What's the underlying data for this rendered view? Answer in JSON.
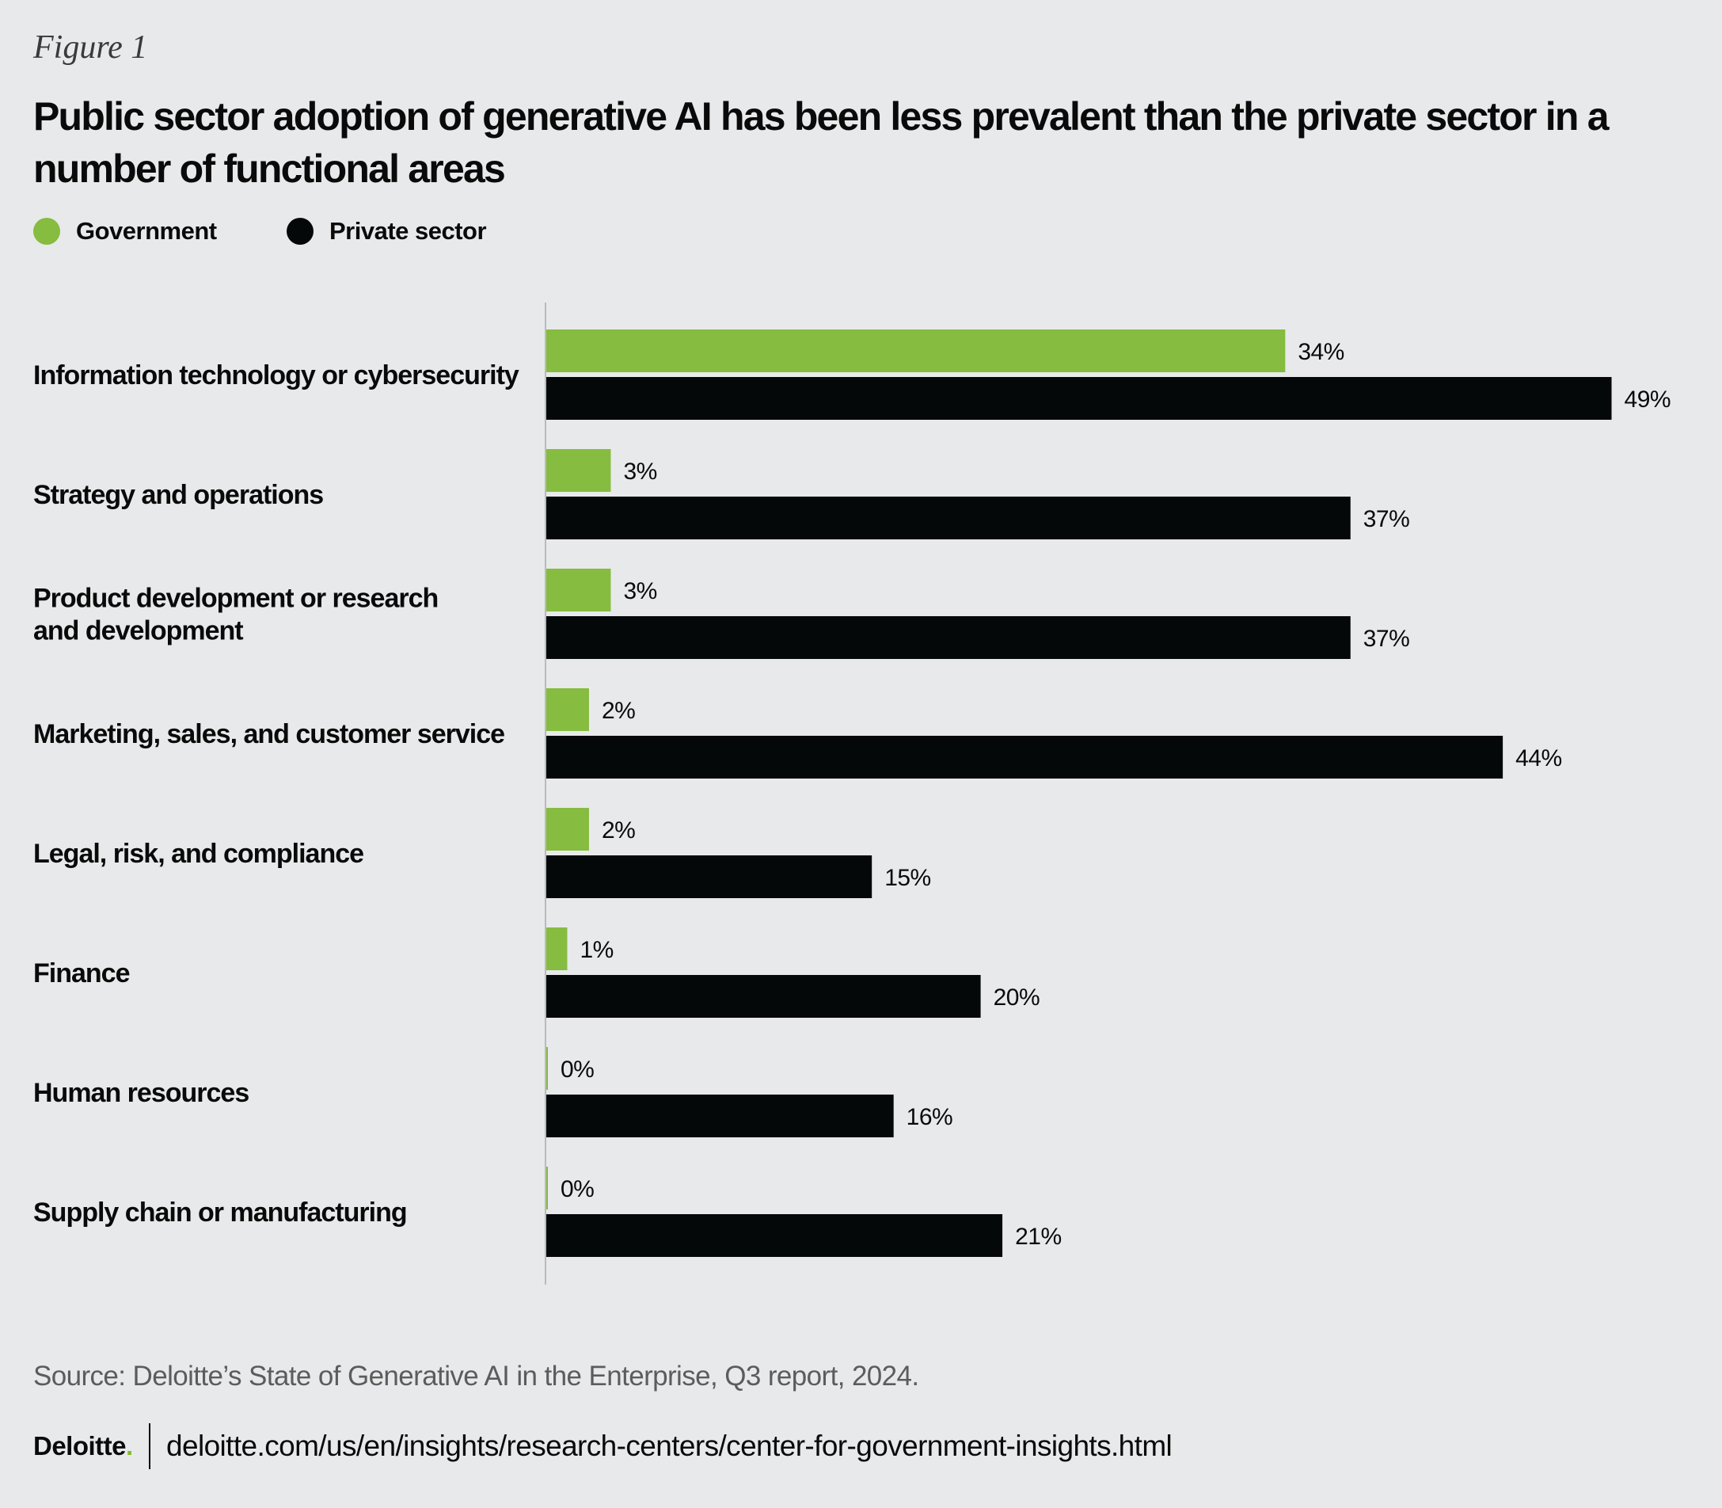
{
  "figure_label": "Figure 1",
  "title": "Public sector adoption of generative AI has been less prevalent than the private sector in a number of functional areas",
  "colors": {
    "government": "#86bc3f",
    "private": "#050809",
    "axis": "#b9bbbd"
  },
  "chart_data": {
    "type": "bar",
    "orientation": "horizontal",
    "title": "Public sector adoption of generative AI has been less prevalent than the private sector in a number of functional areas",
    "categories": [
      "Information technology or cybersecurity",
      "Strategy and operations",
      "Product development or research and development",
      "Marketing, sales, and customer service",
      "Legal, risk, and compliance",
      "Finance",
      "Human resources",
      "Supply chain or manufacturing"
    ],
    "category_lines": [
      [
        "Information technology or cybersecurity"
      ],
      [
        "Strategy and operations"
      ],
      [
        "Product development or research",
        "and development"
      ],
      [
        "Marketing, sales, and customer service"
      ],
      [
        "Legal, risk, and compliance"
      ],
      [
        "Finance"
      ],
      [
        "Human resources"
      ],
      [
        "Supply chain or manufacturing"
      ]
    ],
    "series": [
      {
        "name": "Government",
        "values": [
          34,
          3,
          3,
          2,
          2,
          1,
          0,
          0
        ],
        "labels": [
          "34%",
          "3%",
          "3%",
          "2%",
          "2%",
          "1%",
          "0%",
          "0%"
        ]
      },
      {
        "name": "Private sector",
        "values": [
          49,
          37,
          37,
          44,
          15,
          20,
          16,
          21
        ],
        "labels": [
          "49%",
          "37%",
          "37%",
          "44%",
          "15%",
          "20%",
          "16%",
          "21%"
        ]
      }
    ],
    "xlim": [
      0,
      50
    ],
    "unit": "%",
    "legend": "top-left",
    "grid": false,
    "xlabel": "",
    "ylabel": ""
  },
  "legend": {
    "government_label": "Government",
    "private_label": "Private sector"
  },
  "source": "Source: Deloitte’s State of Generative AI in the Enterprise, Q3 report, 2024.",
  "footer": {
    "logo_text": "Deloitte",
    "logo_dot": ".",
    "url": "deloitte.com/us/en/insights/research-centers/center-for-government-insights.html"
  }
}
